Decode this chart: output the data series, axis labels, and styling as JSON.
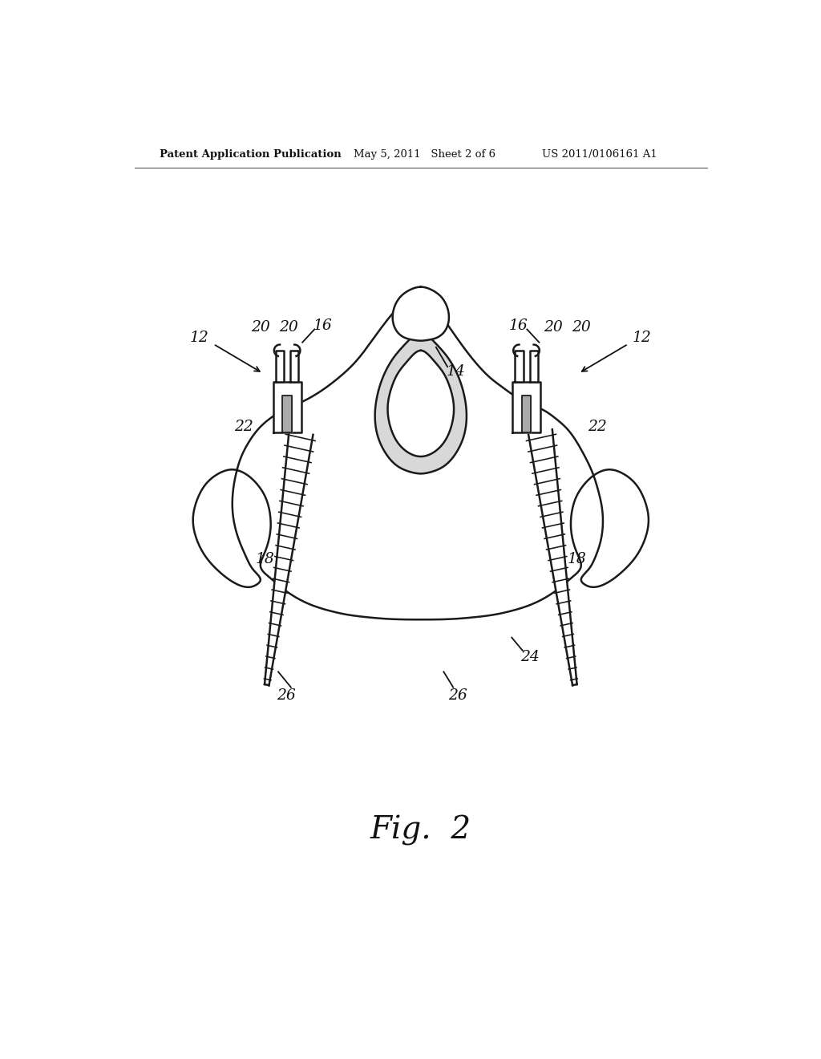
{
  "background_color": "#ffffff",
  "header_left": "Patent Application Publication",
  "header_mid": "May 5, 2011   Sheet 2 of 6",
  "header_right": "US 2011/0106161 A1",
  "fig_label": "Fig.  2",
  "line_color": "#1a1a1a",
  "line_width": 1.8
}
